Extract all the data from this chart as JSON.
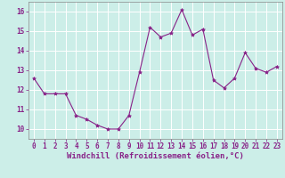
{
  "x": [
    0,
    1,
    2,
    3,
    4,
    5,
    6,
    7,
    8,
    9,
    10,
    11,
    12,
    13,
    14,
    15,
    16,
    17,
    18,
    19,
    20,
    21,
    22,
    23
  ],
  "y": [
    12.6,
    11.8,
    11.8,
    11.8,
    10.7,
    10.5,
    10.2,
    10.0,
    10.0,
    10.7,
    12.9,
    15.2,
    14.7,
    14.9,
    16.1,
    14.8,
    15.1,
    12.5,
    12.1,
    12.6,
    13.9,
    13.1,
    12.9,
    13.2
  ],
  "line_color": "#882288",
  "marker": "*",
  "marker_size": 3,
  "bg_color": "#cceee8",
  "grid_color": "#ffffff",
  "xlabel": "Windchill (Refroidissement éolien,°C)",
  "xlabel_color": "#882288",
  "tick_color": "#882288",
  "spine_color": "#888888",
  "ylim": [
    9.5,
    16.5
  ],
  "xlim": [
    -0.5,
    23.5
  ],
  "yticks": [
    10,
    11,
    12,
    13,
    14,
    15,
    16
  ],
  "xticks": [
    0,
    1,
    2,
    3,
    4,
    5,
    6,
    7,
    8,
    9,
    10,
    11,
    12,
    13,
    14,
    15,
    16,
    17,
    18,
    19,
    20,
    21,
    22,
    23
  ],
  "tick_fontsize": 5.5,
  "xlabel_fontsize": 6.5
}
